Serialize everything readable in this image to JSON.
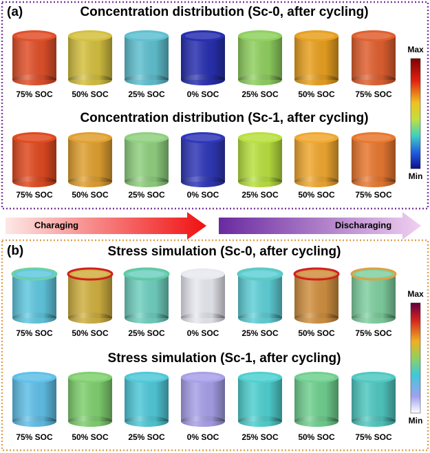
{
  "panels": [
    {
      "label": "(a)",
      "rows": [
        {
          "title": "Concentration distribution (Sc-0, after cycling)",
          "items": [
            "75%  SOC",
            "50%  SOC",
            "25%  SOC",
            "0%  SOC",
            "25%  SOC",
            "50%  SOC",
            "75%  SOC"
          ]
        },
        {
          "title": "Concentration distribution (Sc-1, after cycling)",
          "items": [
            "75%  SOC",
            "50%  SOC",
            "25%  SOC",
            "0%  SOC",
            "25%  SOC",
            "50%  SOC",
            "75%  SOC"
          ]
        }
      ],
      "colorbar": {
        "max": "Max",
        "min": "Min"
      }
    },
    {
      "label": "(b)",
      "rows": [
        {
          "title": "Stress simulation (Sc-0, after cycling)",
          "items": [
            "75%  SOC",
            "50%  SOC",
            "25%  SOC",
            "0%  SOC",
            "25%  SOC",
            "50%  SOC",
            "75%  SOC"
          ]
        },
        {
          "title": "Stress simulation (Sc-1, after cycling)",
          "items": [
            "75%  SOC",
            "50%  SOC",
            "25%  SOC",
            "0%  SOC",
            "25%  SOC",
            "50%  SOC",
            "75%  SOC"
          ]
        }
      ],
      "colorbar": {
        "max": "Max",
        "min": "Min"
      }
    }
  ],
  "arrows": {
    "charging": "Charaging",
    "discharging": "Discharaging"
  }
}
